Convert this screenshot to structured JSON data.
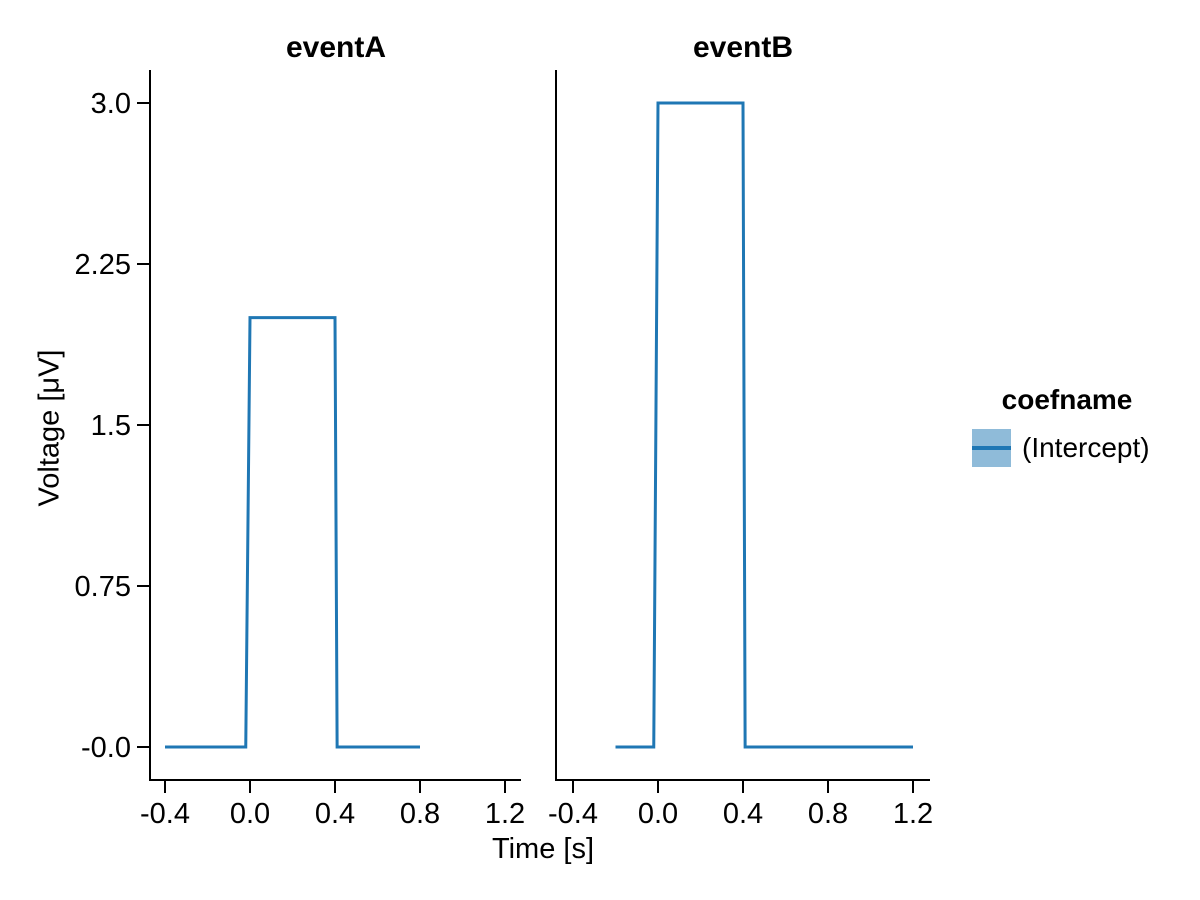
{
  "figure": {
    "background": "#ffffff",
    "text_color": "#000000",
    "axis_color": "#000000"
  },
  "chart_data": {
    "type": "line",
    "xlabel": "Time [s]",
    "ylabel": "Voltage [μV]",
    "xlim": [
      -0.4,
      1.2
    ],
    "ylim": [
      0.0,
      3.0
    ],
    "xticks": [
      -0.4,
      0.0,
      0.4,
      0.8,
      1.2
    ],
    "xtick_labels": [
      "-0.4",
      "0.0",
      "0.4",
      "0.8",
      "1.2"
    ],
    "yticks": [
      3.0,
      2.25,
      1.5,
      0.75,
      0.0
    ],
    "ytick_labels": [
      "3.0",
      "2.25",
      "1.5",
      "0.75",
      "-0.0"
    ],
    "grid": false,
    "line_color": "#1f77b4",
    "band_color": "rgba(31,119,180,0.5)",
    "axis_color": "#000000",
    "text_color": "#000000",
    "facets": [
      {
        "title": "eventA",
        "series": [
          {
            "name": "(Intercept)",
            "x": [
              -0.4,
              -0.02,
              0.0,
              0.4,
              0.41,
              0.8
            ],
            "y": [
              0.0,
              0.0,
              2.0,
              2.0,
              0.0,
              0.0
            ]
          }
        ]
      },
      {
        "title": "eventB",
        "series": [
          {
            "name": "(Intercept)",
            "x": [
              -0.2,
              -0.02,
              0.0,
              0.4,
              0.41,
              1.2
            ],
            "y": [
              0.0,
              0.0,
              3.0,
              3.0,
              0.0,
              0.0
            ]
          }
        ]
      }
    ],
    "legend": {
      "title": "coefname",
      "position": "right",
      "entries": [
        {
          "label": "(Intercept)"
        }
      ]
    }
  }
}
